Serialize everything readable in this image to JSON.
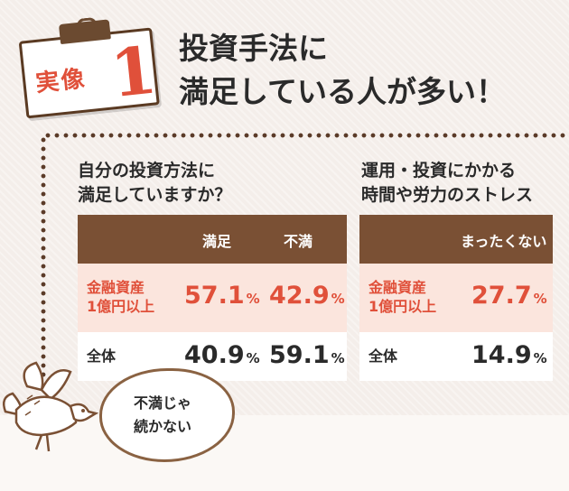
{
  "badge": {
    "label": "実像",
    "number": "1"
  },
  "headline": {
    "line1": "投資手法に",
    "line2": "満足している人が多い！"
  },
  "left": {
    "subhead_line1": "自分の投資方法に",
    "subhead_line2": "満足していますか？",
    "columns": [
      "満足",
      "不満"
    ],
    "rows": [
      {
        "label_line1": "金融資産",
        "label_line2": "1億円以上",
        "values": [
          "57.1",
          "42.9"
        ]
      },
      {
        "label_line1": "全体",
        "label_line2": "",
        "values": [
          "40.9",
          "59.1"
        ]
      }
    ]
  },
  "right": {
    "subhead_line1": "運用・投資にかかる",
    "subhead_line2": "時間や労力のストレス",
    "columns": [
      "まったくない"
    ],
    "rows": [
      {
        "label_line1": "金融資産",
        "label_line2": "1億円以上",
        "values": [
          "27.7"
        ]
      },
      {
        "label_line1": "全体",
        "label_line2": "",
        "values": [
          "14.9"
        ]
      }
    ]
  },
  "unit": "%",
  "bubble": {
    "line1": "不満じゃ",
    "line2": "続かない"
  },
  "colors": {
    "accent": "#e0503a",
    "header": "#7a5034",
    "highlight_row": "#fbe5dd"
  }
}
